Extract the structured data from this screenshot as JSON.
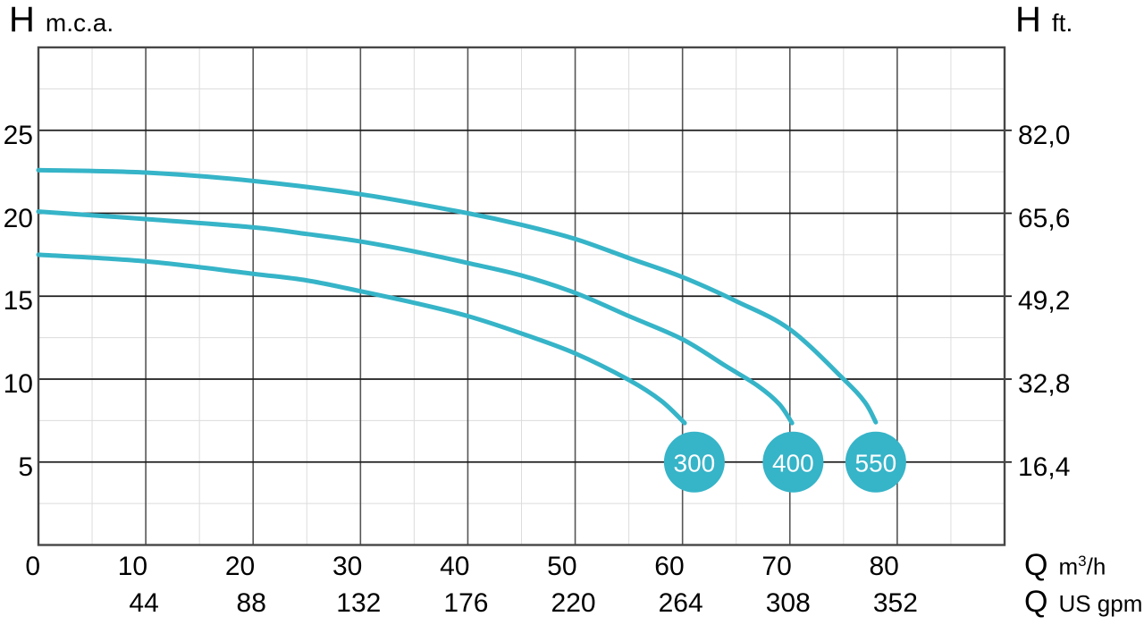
{
  "labels": {
    "top_left": {
      "symbol": "H",
      "unit": "m.c.a."
    },
    "top_right": {
      "symbol": "H",
      "unit": "ft."
    },
    "bottom_row1": {
      "symbol": "Q",
      "unit_base": "m",
      "unit_sup": "3",
      "unit_rest": "/h"
    },
    "bottom_row2": {
      "symbol": "Q",
      "unit": "US gpm"
    }
  },
  "chart_data": {
    "type": "line",
    "title": "",
    "description": "Pump head (H) vs flow (Q) performance curves for three pump models 300, 400 and 550",
    "x_axis": {
      "unit": "m3/h",
      "min": 0,
      "max": 90,
      "major_step": 10,
      "minor_step": 5,
      "ticks": [
        0,
        10,
        20,
        30,
        40,
        50,
        60,
        70,
        80
      ]
    },
    "x_axis_secondary": {
      "unit": "US gpm",
      "positions": [
        10,
        20,
        30,
        40,
        50,
        60,
        70,
        80
      ],
      "labels": [
        "44",
        "88",
        "132",
        "176",
        "220",
        "264",
        "308",
        "352"
      ]
    },
    "y_axis_left": {
      "unit": "m.c.a.",
      "min": 0,
      "max": 30,
      "major_step": 5,
      "minor_step": 2.5,
      "ticks": [
        5,
        10,
        15,
        20,
        25
      ]
    },
    "y_axis_right": {
      "unit": "ft.",
      "positions": [
        5,
        10,
        15,
        20,
        25
      ],
      "labels": [
        "16,4",
        "32,8",
        "49,2",
        "65,6",
        "82,0"
      ]
    },
    "grid": {
      "major": true,
      "minor": true
    },
    "series": [
      {
        "name": "300",
        "points": [
          [
            0,
            17.5
          ],
          [
            10,
            17.1
          ],
          [
            20,
            16.35
          ],
          [
            25,
            15.95
          ],
          [
            30,
            15.3
          ],
          [
            35,
            14.6
          ],
          [
            40,
            13.8
          ],
          [
            45,
            12.75
          ],
          [
            50,
            11.55
          ],
          [
            55,
            9.95
          ],
          [
            58,
            8.7
          ],
          [
            60.2,
            7.35
          ]
        ],
        "marker": {
          "q": 61.1,
          "h": 5,
          "label": "300"
        }
      },
      {
        "name": "400",
        "points": [
          [
            0,
            20.1
          ],
          [
            10,
            19.65
          ],
          [
            20,
            19.15
          ],
          [
            25,
            18.75
          ],
          [
            30,
            18.3
          ],
          [
            35,
            17.7
          ],
          [
            40,
            17.0
          ],
          [
            45,
            16.25
          ],
          [
            50,
            15.2
          ],
          [
            55,
            13.8
          ],
          [
            60,
            12.4
          ],
          [
            64,
            10.8
          ],
          [
            67,
            9.6
          ],
          [
            69,
            8.5
          ],
          [
            70.2,
            7.35
          ]
        ],
        "marker": {
          "q": 70.3,
          "h": 5,
          "label": "400"
        }
      },
      {
        "name": "550",
        "points": [
          [
            0,
            22.6
          ],
          [
            10,
            22.45
          ],
          [
            20,
            21.95
          ],
          [
            30,
            21.15
          ],
          [
            40,
            20.0
          ],
          [
            45,
            19.3
          ],
          [
            50,
            18.45
          ],
          [
            55,
            17.3
          ],
          [
            60,
            16.15
          ],
          [
            65,
            14.7
          ],
          [
            70,
            13.0
          ],
          [
            75,
            10.0
          ],
          [
            77,
            8.6
          ],
          [
            78,
            7.4
          ]
        ],
        "marker": {
          "q": 78,
          "h": 5,
          "label": "550"
        }
      }
    ],
    "style": {
      "curve_color": "#36b4c8",
      "curve_width": 5,
      "marker_radius": 34,
      "marker_fill": "#36b4c8",
      "marker_text_color": "#ffffff",
      "grid_minor_color": "#dcdcdc",
      "grid_major_h_color": "#1c1c1c",
      "grid_major_v_color": "#555555",
      "border_color": "#464646",
      "text_color": "#000000"
    }
  }
}
